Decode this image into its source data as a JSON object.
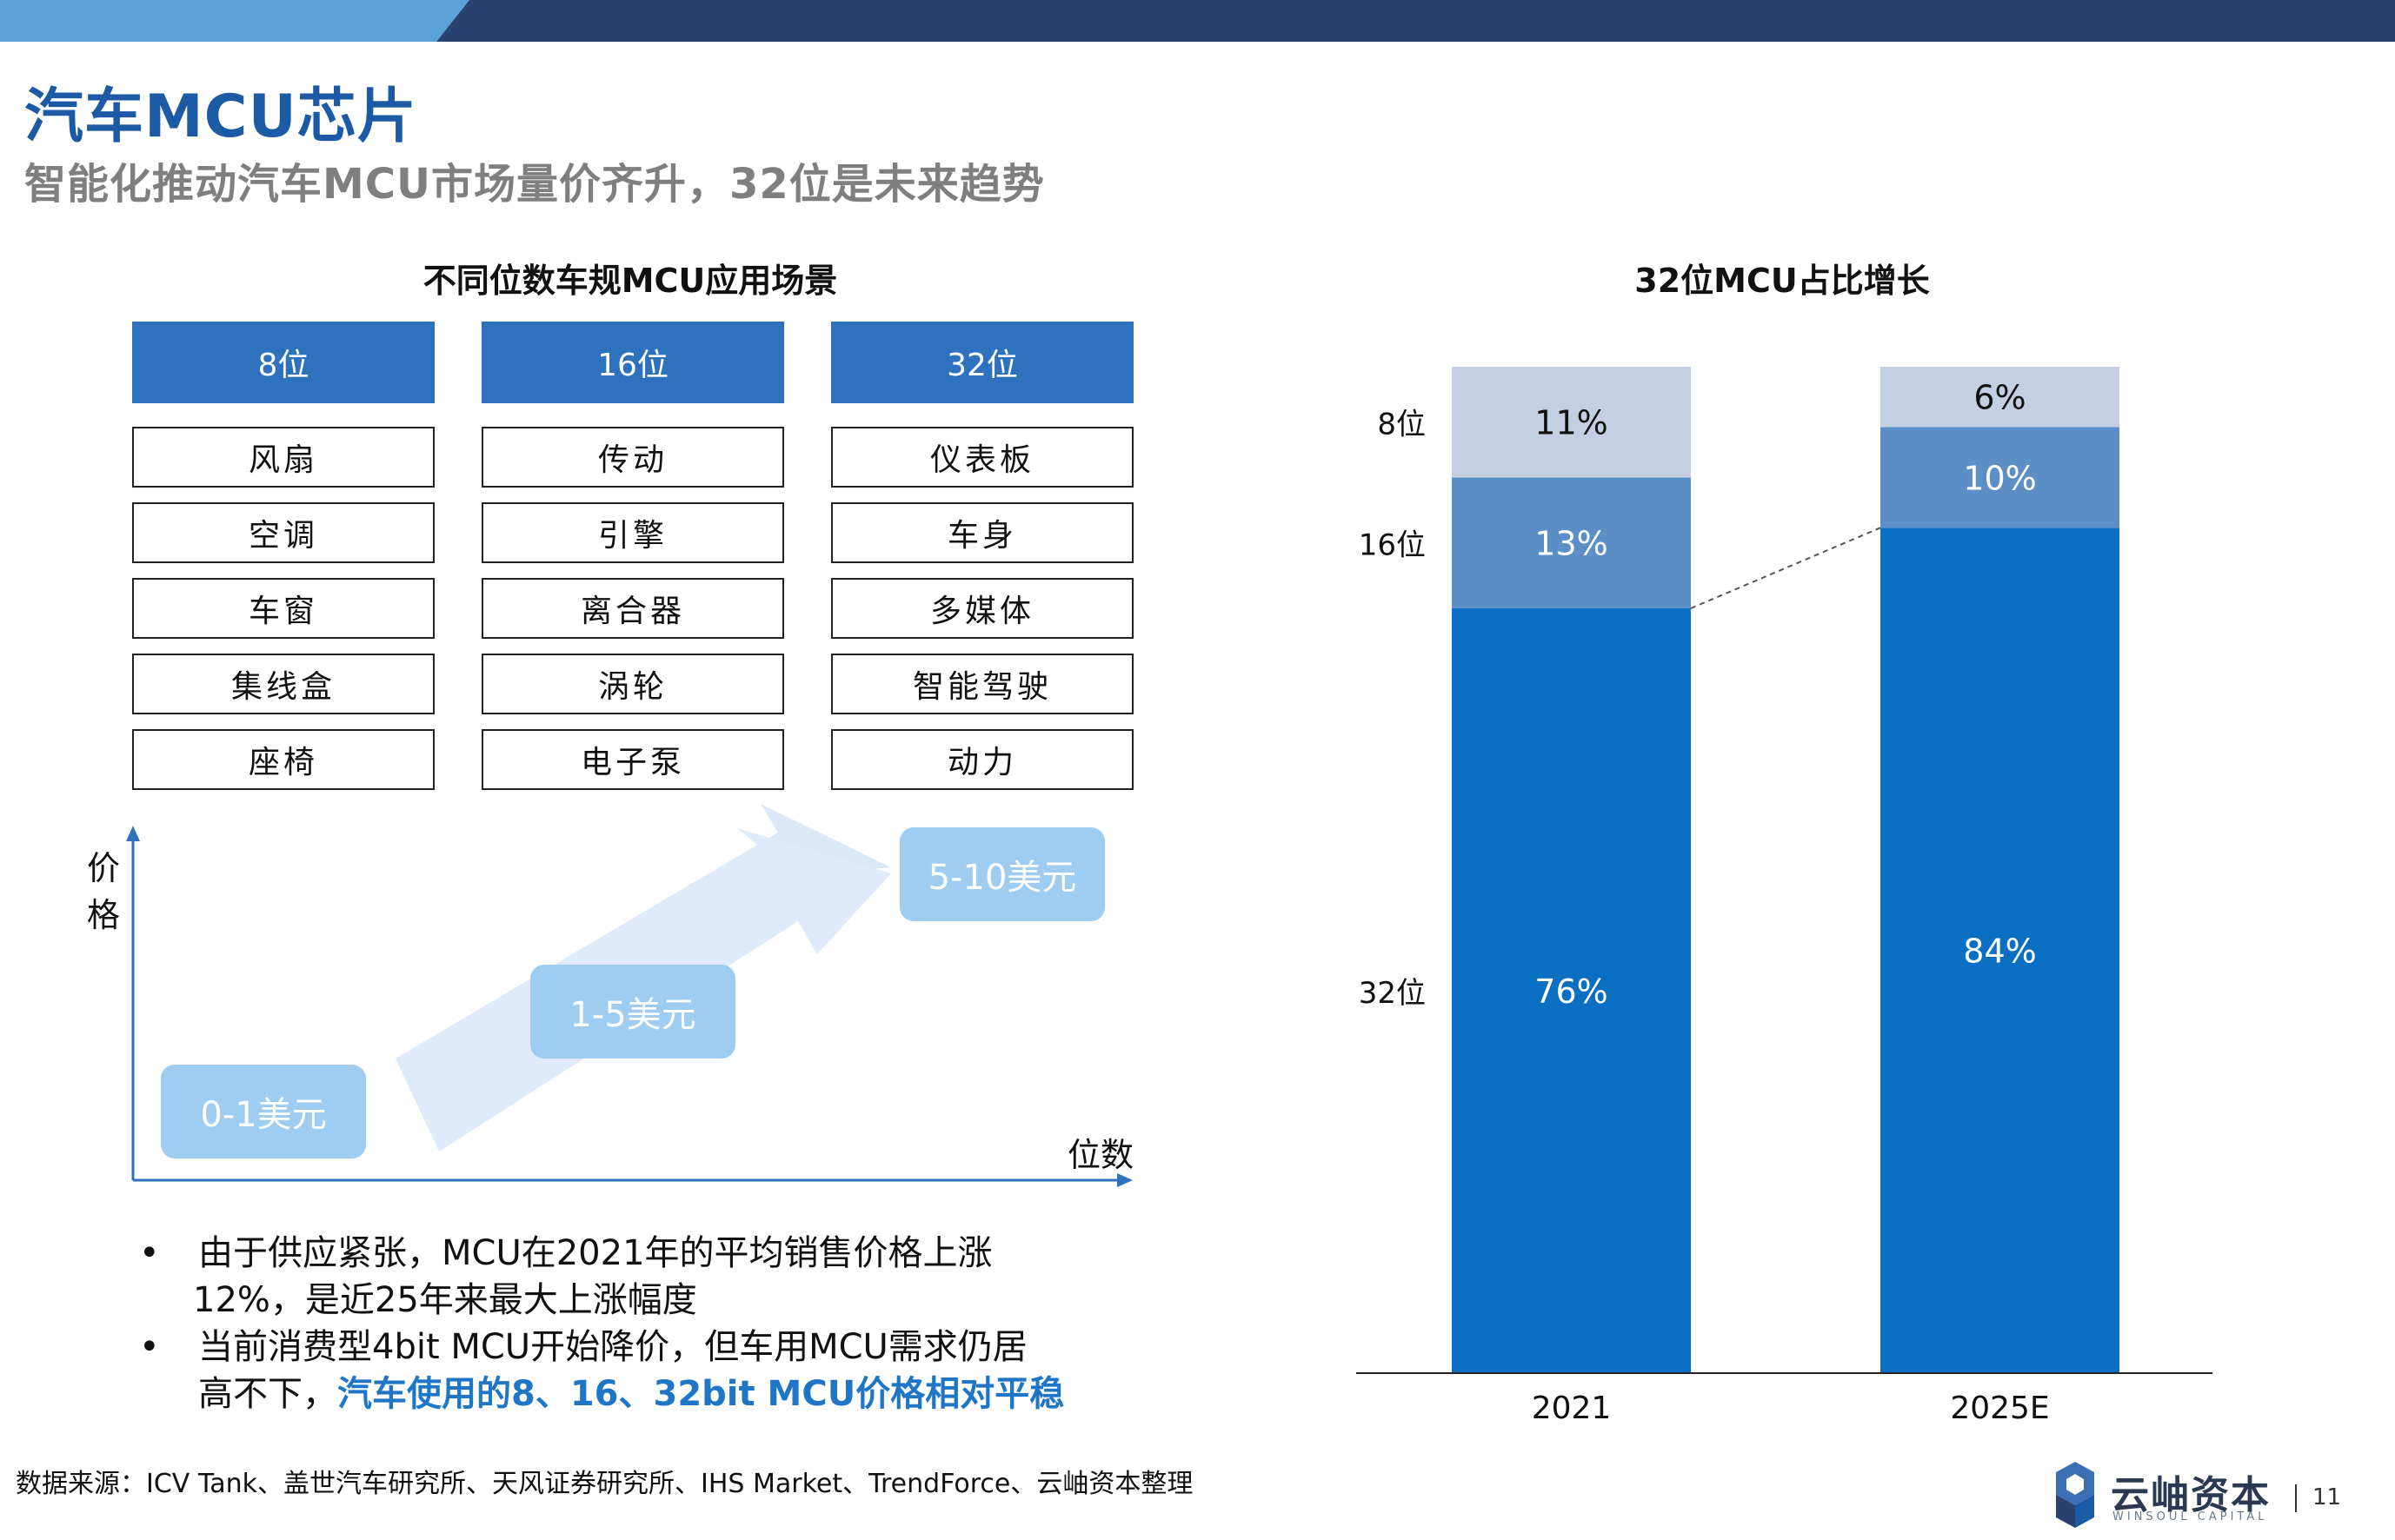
{
  "header": {
    "title": "汽车MCU芯片",
    "subtitle": "智能化推动汽车MCU市场量价齐升，32位是未来趋势"
  },
  "table": {
    "title": "不同位数车规MCU应用场景",
    "columns": [
      {
        "header": "8位",
        "items": [
          "风扇",
          "空调",
          "车窗",
          "集线盒",
          "座椅"
        ]
      },
      {
        "header": "16位",
        "items": [
          "传动",
          "引擎",
          "离合器",
          "涡轮",
          "电子泵"
        ]
      },
      {
        "header": "32位",
        "items": [
          "仪表板",
          "车身",
          "多媒体",
          "智能驾驶",
          "动力"
        ]
      }
    ]
  },
  "price_diagram": {
    "y_axis_label_1": "价",
    "y_axis_label_2": "格",
    "x_axis_label": "位数",
    "boxes": [
      "0-1美元",
      "1-5美元",
      "5-10美元"
    ]
  },
  "bullets": {
    "b1_line1": "由于供应紧张，MCU在2021年的平均销售价格上涨",
    "b1_line2": "12%，是近25年来最大上涨幅度",
    "b2_line1": "当前消费型4bit  MCU开始降价，但车用MCU需求仍居",
    "b2_line2_plain": "高不下，",
    "b2_line2_highlight": "汽车使用的8、16、32bit MCU价格相对平稳",
    "dot": "•"
  },
  "source": "数据来源：ICV Tank、盖世汽车研究所、天风证券研究所、IHS Market、TrendForce、云岫资本整理",
  "chart_data": {
    "type": "bar",
    "stacked": true,
    "title": "32位MCU占比增长",
    "categories": [
      "2021",
      "2025E"
    ],
    "series": [
      {
        "name": "32位",
        "values": [
          76,
          84
        ],
        "labels": [
          "76%",
          "84%"
        ],
        "color": "#0a6fc2"
      },
      {
        "name": "16位",
        "values": [
          13,
          10
        ],
        "labels": [
          "13%",
          "10%"
        ],
        "color": "#5b8fc5"
      },
      {
        "name": "8位",
        "values": [
          11,
          6
        ],
        "labels": [
          "11%",
          "6%"
        ],
        "color": "#c5cfe3"
      }
    ],
    "ylim": [
      0,
      100
    ]
  },
  "footer": {
    "logo_text": "云岫资本",
    "logo_sub": "WINSOUL CAPITAL",
    "page_number": "11"
  }
}
